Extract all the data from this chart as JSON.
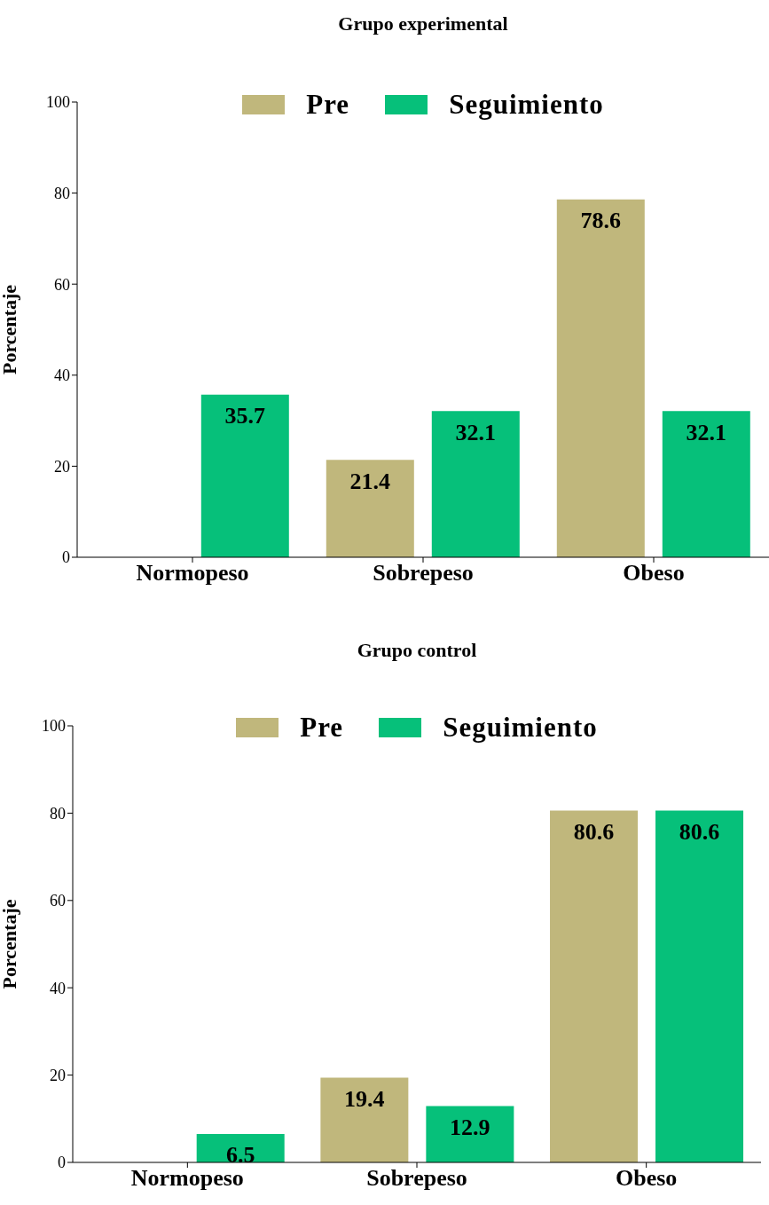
{
  "chart_data": [
    {
      "type": "bar",
      "title": "Grupo experimental",
      "ylabel": "Porcentaje",
      "categories": [
        "Normopeso",
        "Sobrepeso",
        "Obeso"
      ],
      "series": [
        {
          "name": "Pre",
          "color": "#c0b77c",
          "values": [
            null,
            21.4,
            78.6
          ]
        },
        {
          "name": "Seguimiento",
          "color": "#06c07a",
          "values": [
            35.7,
            32.1,
            32.1
          ]
        }
      ],
      "ylim": [
        0,
        100
      ],
      "yticks": [
        0,
        20,
        40,
        60,
        80,
        100
      ],
      "grid": false,
      "legend": "top",
      "data_labels": true
    },
    {
      "type": "bar",
      "title": "Grupo control",
      "ylabel": "Porcentaje",
      "categories": [
        "Normopeso",
        "Sobrepeso",
        "Obeso"
      ],
      "series": [
        {
          "name": "Pre",
          "color": "#c0b77c",
          "values": [
            null,
            19.4,
            80.6
          ]
        },
        {
          "name": "Seguimiento",
          "color": "#06c07a",
          "values": [
            6.5,
            12.9,
            80.6
          ]
        }
      ],
      "ylim": [
        0,
        100
      ],
      "yticks": [
        0,
        20,
        40,
        60,
        80,
        100
      ],
      "grid": false,
      "legend": "top",
      "data_labels": true
    }
  ]
}
